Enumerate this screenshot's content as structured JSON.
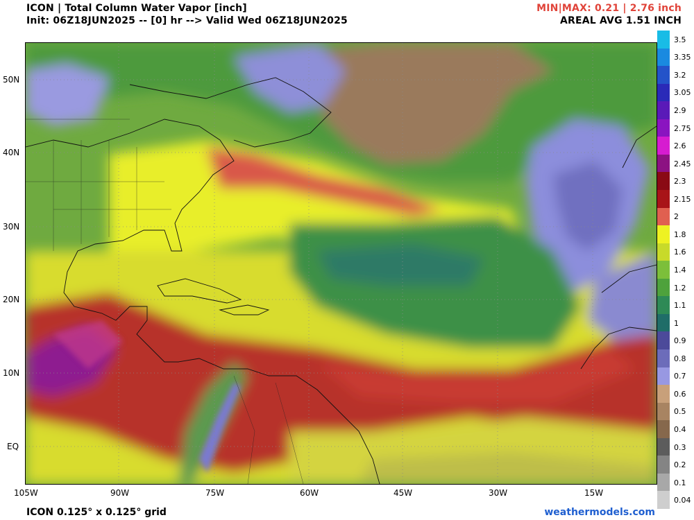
{
  "header": {
    "title": "ICON | Total Column Water Vapor [inch]",
    "init": "Init: 06Z18JUN2025 -- [0] hr --> Valid Wed 06Z18JUN2025",
    "minmax": "MIN|MAX: 0.21 | 2.76 inch",
    "areal": "AREAL AVG 1.51 INCH"
  },
  "axes": {
    "lat_labels": [
      "50N",
      "40N",
      "30N",
      "20N",
      "10N",
      "EQ"
    ],
    "lon_labels": [
      "105W",
      "90W",
      "75W",
      "60W",
      "45W",
      "30W",
      "15W"
    ]
  },
  "colorbar": {
    "labels": [
      "3.5",
      "3.35",
      "3.2",
      "3.05",
      "2.9",
      "2.75",
      "2.6",
      "2.45",
      "2.3",
      "2.15",
      "2",
      "1.8",
      "1.6",
      "1.4",
      "1.2",
      "1.1",
      "1",
      "0.9",
      "0.8",
      "0.7",
      "0.6",
      "0.5",
      "0.4",
      "0.3",
      "0.2",
      "0.1",
      "0.04"
    ],
    "colors": [
      "#19bce6",
      "#1a8ae0",
      "#2453c9",
      "#2a2ab8",
      "#5a1ab8",
      "#8a14c0",
      "#d61cd0",
      "#8c1282",
      "#8a0a14",
      "#a81418",
      "#e06050",
      "#eef222",
      "#c8da2a",
      "#7cbf3a",
      "#4ea23c",
      "#2e8a56",
      "#1f6d68",
      "#4c4a9a",
      "#6c6cba",
      "#9898e2",
      "#c8a07a",
      "#a88462",
      "#86684c",
      "#5c5c5c",
      "#848484",
      "#a8a8a8",
      "#cecece"
    ]
  },
  "footer": {
    "left": "ICON 0.125° x 0.125° grid",
    "right": "weathermodels.com"
  },
  "colors": {
    "title": "#000000",
    "minmax": "#e0443a",
    "footer_link": "#1f5fd0"
  }
}
